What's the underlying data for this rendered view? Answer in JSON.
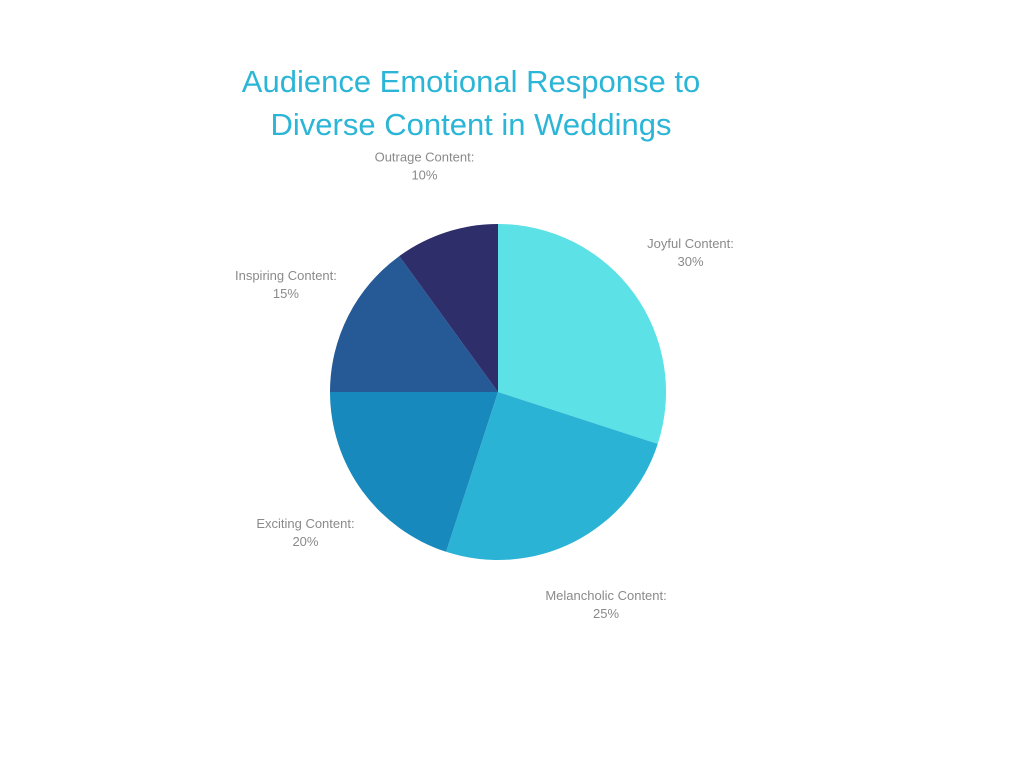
{
  "chart_data": {
    "type": "pie",
    "title": "Audience Emotional Response to Diverse Content in Weddings",
    "title_lines": [
      "Audience Emotional Response to",
      "Diverse Content in Weddings"
    ],
    "slices": [
      {
        "label": "Joyful Content:",
        "value": 30,
        "display": "30%",
        "color": "#5ce1e6"
      },
      {
        "label": "Melancholic Content:",
        "value": 25,
        "display": "25%",
        "color": "#2bb3d5"
      },
      {
        "label": "Exciting Content:",
        "value": 20,
        "display": "20%",
        "color": "#1789bc"
      },
      {
        "label": "Inspiring Content:",
        "value": 15,
        "display": "15%",
        "color": "#255a97"
      },
      {
        "label": "Outrage Content:",
        "value": 10,
        "display": "10%",
        "color": "#2e2e6b"
      }
    ],
    "start": "12 o'clock",
    "direction": "clockwise",
    "legend": "none"
  }
}
